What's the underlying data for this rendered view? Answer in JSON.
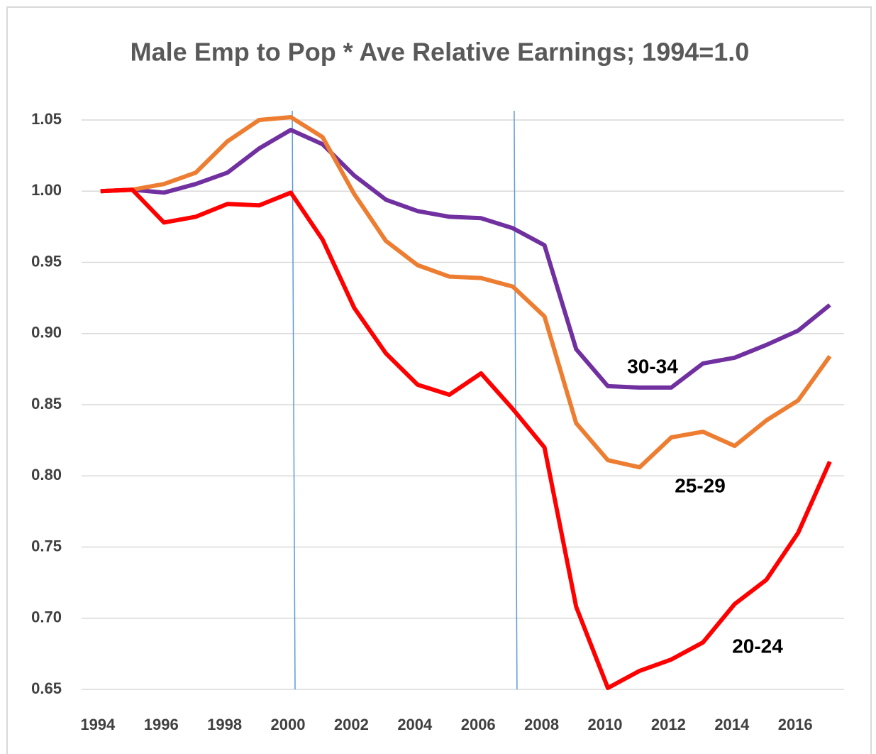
{
  "chart_data": {
    "type": "line",
    "title": "Male Emp to Pop * Ave Relative Earnings; 1994=1.0",
    "x": [
      1994,
      1995,
      1996,
      1997,
      1998,
      1999,
      2000,
      2001,
      2002,
      2003,
      2004,
      2005,
      2006,
      2007,
      2008,
      2009,
      2010,
      2011,
      2012,
      2013,
      2014,
      2015,
      2016,
      2017
    ],
    "series": [
      {
        "name": "30-34",
        "color": "#7030a0",
        "values": [
          1.0,
          1.001,
          0.999,
          1.005,
          1.013,
          1.03,
          1.043,
          1.033,
          1.011,
          0.994,
          0.986,
          0.982,
          0.981,
          0.974,
          0.962,
          0.889,
          0.863,
          0.862,
          0.862,
          0.879,
          0.883,
          0.892,
          0.902,
          0.92
        ]
      },
      {
        "name": "25-29",
        "color": "#ed7d31",
        "values": [
          1.0,
          1.001,
          1.005,
          1.013,
          1.035,
          1.05,
          1.052,
          1.038,
          0.998,
          0.965,
          0.948,
          0.94,
          0.939,
          0.933,
          0.912,
          0.837,
          0.811,
          0.806,
          0.827,
          0.831,
          0.821,
          0.839,
          0.853,
          0.884
        ]
      },
      {
        "name": "20-24",
        "color": "#ff0000",
        "values": [
          1.0,
          1.001,
          0.978,
          0.982,
          0.991,
          0.99,
          0.999,
          0.966,
          0.918,
          0.886,
          0.864,
          0.857,
          0.872,
          0.847,
          0.82,
          0.708,
          0.651,
          0.663,
          0.671,
          0.683,
          0.71,
          0.727,
          0.76,
          0.81
        ]
      }
    ],
    "xlim": [
      1993.4,
      2017.45
    ],
    "xticks": [
      1994,
      1996,
      1998,
      2000,
      2002,
      2004,
      2006,
      2008,
      2010,
      2012,
      2014,
      2016
    ],
    "ylim": [
      0.65,
      1.05
    ],
    "yticks": [
      {
        "value": 0.65,
        "label": "0.65"
      },
      {
        "value": 0.7,
        "label": "0.70"
      },
      {
        "value": 0.75,
        "label": "0.75"
      },
      {
        "value": 0.8,
        "label": "0.80"
      },
      {
        "value": 0.85,
        "label": "0.85"
      },
      {
        "value": 0.9,
        "label": "0.90"
      },
      {
        "value": 0.95,
        "label": "0.95"
      },
      {
        "value": 1.0,
        "label": "1.00"
      },
      {
        "value": 1.05,
        "label": "1.05"
      }
    ],
    "vlines": [
      2000,
      2007
    ],
    "grid": true
  }
}
